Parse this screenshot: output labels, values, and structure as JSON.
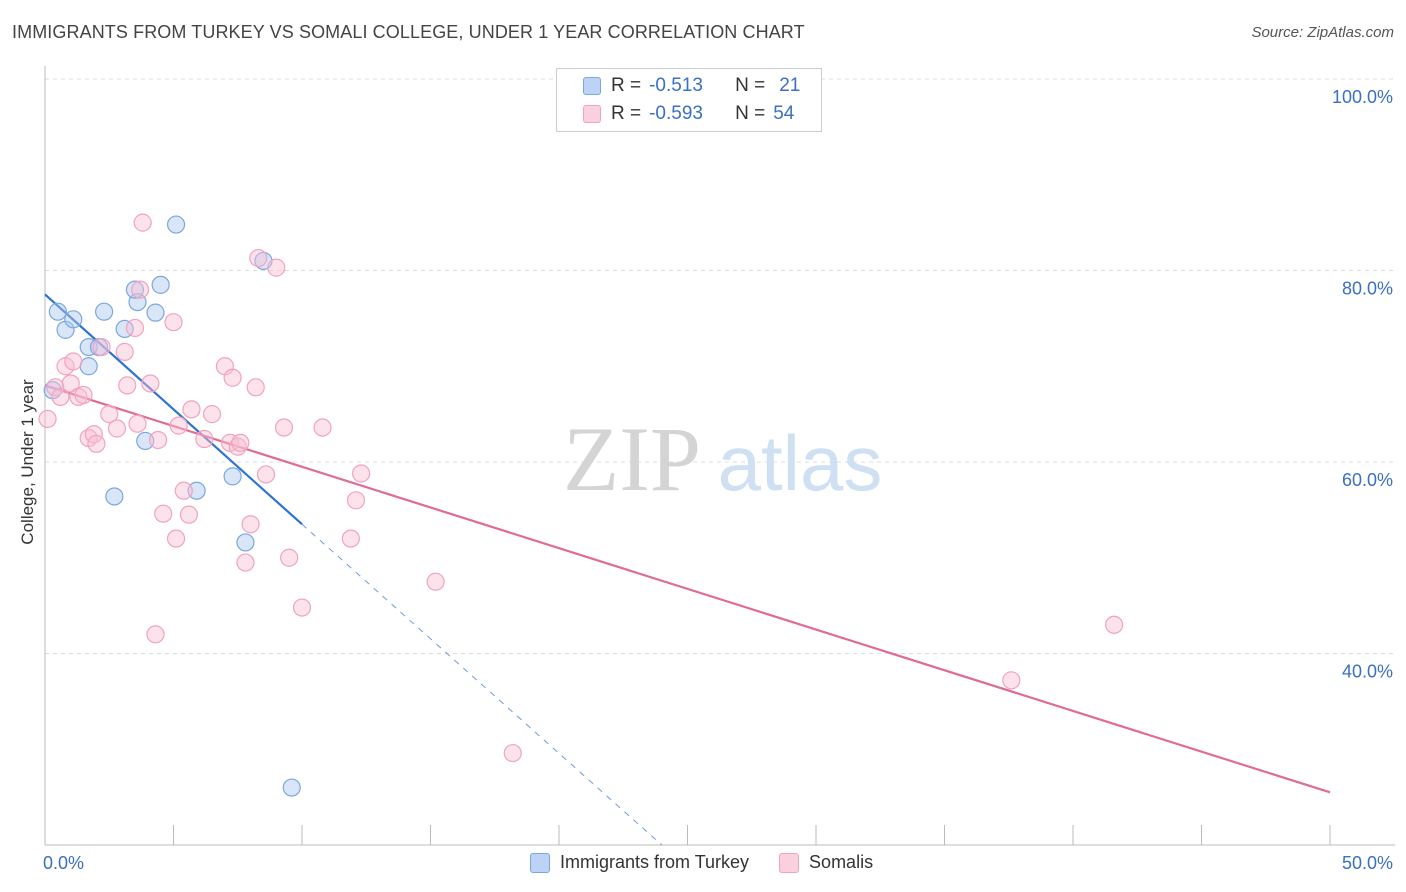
{
  "title": "IMMIGRANTS FROM TURKEY VS SOMALI COLLEGE, UNDER 1 YEAR CORRELATION CHART",
  "source": "Source: ZipAtlas.com",
  "watermark": {
    "zip": "ZIP",
    "atlas": "atlas"
  },
  "legend": {
    "rows": [
      {
        "r_label": "R =",
        "r_value": "-0.513",
        "n_label": "N =",
        "n_value": "21"
      },
      {
        "r_label": "R =",
        "r_value": "-0.593",
        "n_label": "N =",
        "n_value": "54"
      }
    ]
  },
  "chart_data": {
    "type": "scatter",
    "title": "IMMIGRANTS FROM TURKEY VS SOMALI COLLEGE, UNDER 1 YEAR CORRELATION CHART",
    "xlabel": "",
    "ylabel": "College, Under 1 year",
    "xlim": [
      0,
      50
    ],
    "ylim": [
      20,
      100
    ],
    "x_tick_labels": [
      "0.0%",
      "50.0%"
    ],
    "y_ticks": [
      100,
      80,
      60,
      40
    ],
    "y_tick_labels": [
      "100.0%",
      "80.0%",
      "60.0%",
      "40.0%"
    ],
    "grid": "horizontal-dashed",
    "legend_position": "top-center",
    "series": [
      {
        "name": "Immigrants from Turkey",
        "color": "#7ba7e0",
        "line_color": "#2e72d2",
        "points": [
          [
            0.3,
            67.5
          ],
          [
            0.5,
            75.7
          ],
          [
            0.8,
            73.8
          ],
          [
            1.1,
            74.9
          ],
          [
            1.7,
            72.0
          ],
          [
            1.7,
            70.0
          ],
          [
            2.3,
            75.7
          ],
          [
            2.7,
            56.4
          ],
          [
            3.1,
            73.9
          ],
          [
            3.6,
            76.7
          ],
          [
            3.9,
            62.2
          ],
          [
            4.3,
            75.6
          ],
          [
            4.5,
            78.5
          ],
          [
            5.1,
            84.8
          ],
          [
            5.9,
            57.0
          ],
          [
            7.3,
            58.5
          ],
          [
            7.8,
            51.6
          ],
          [
            8.5,
            81.0
          ],
          [
            9.6,
            26.0
          ],
          [
            3.5,
            78.0
          ],
          [
            2.1,
            72.0
          ]
        ],
        "trend": {
          "x0": 0.0,
          "y0": 77.5,
          "x1": 10.0,
          "y1": 53.5,
          "dash_to_x": 24.0,
          "dash_to_y": 20.0
        }
      },
      {
        "name": "Somalis",
        "color": "#f2a3bf",
        "line_color": "#e06b98",
        "points": [
          [
            0.1,
            64.5
          ],
          [
            0.4,
            67.8
          ],
          [
            0.6,
            66.8
          ],
          [
            0.8,
            70.0
          ],
          [
            1.0,
            68.2
          ],
          [
            1.1,
            70.5
          ],
          [
            1.3,
            66.8
          ],
          [
            1.5,
            67.0
          ],
          [
            1.7,
            62.5
          ],
          [
            1.9,
            62.9
          ],
          [
            2.0,
            61.9
          ],
          [
            2.2,
            72.0
          ],
          [
            2.5,
            65.0
          ],
          [
            2.8,
            63.5
          ],
          [
            3.1,
            71.5
          ],
          [
            3.2,
            68.0
          ],
          [
            3.5,
            74.0
          ],
          [
            3.6,
            64.0
          ],
          [
            3.7,
            78.0
          ],
          [
            3.8,
            85.0
          ],
          [
            4.1,
            68.2
          ],
          [
            4.3,
            42.0
          ],
          [
            4.4,
            62.3
          ],
          [
            4.6,
            54.6
          ],
          [
            5.0,
            74.6
          ],
          [
            5.1,
            52.0
          ],
          [
            5.2,
            63.8
          ],
          [
            5.4,
            57.0
          ],
          [
            5.6,
            54.5
          ],
          [
            5.7,
            65.5
          ],
          [
            6.2,
            62.4
          ],
          [
            6.5,
            65.0
          ],
          [
            7.0,
            70.0
          ],
          [
            7.2,
            62.0
          ],
          [
            7.3,
            68.8
          ],
          [
            7.5,
            61.6
          ],
          [
            7.8,
            49.5
          ],
          [
            8.0,
            53.5
          ],
          [
            8.2,
            67.8
          ],
          [
            8.3,
            81.3
          ],
          [
            8.6,
            58.7
          ],
          [
            9.0,
            80.3
          ],
          [
            9.3,
            63.6
          ],
          [
            9.5,
            50.0
          ],
          [
            10.0,
            44.8
          ],
          [
            10.8,
            63.6
          ],
          [
            11.9,
            52.0
          ],
          [
            12.1,
            56.0
          ],
          [
            12.3,
            58.8
          ],
          [
            15.2,
            47.5
          ],
          [
            18.2,
            29.6
          ],
          [
            37.6,
            37.2
          ],
          [
            41.6,
            43.0
          ],
          [
            7.6,
            62.0
          ]
        ],
        "trend": {
          "x0": 0.0,
          "y0": 68.0,
          "x1": 50.0,
          "y1": 25.5
        }
      }
    ]
  }
}
